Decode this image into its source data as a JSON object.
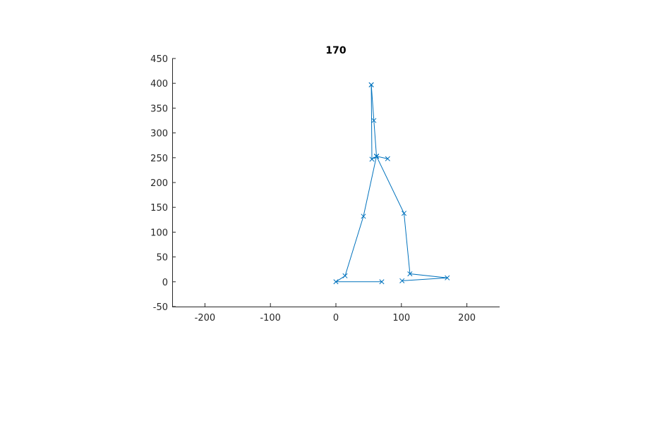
{
  "chart_data": {
    "type": "line",
    "title": "170",
    "xlabel": "",
    "ylabel": "",
    "xlim": [
      -250,
      250
    ],
    "ylim": [
      -50,
      450
    ],
    "xticks": [
      -200,
      -100,
      0,
      100,
      200
    ],
    "yticks": [
      -50,
      0,
      50,
      100,
      150,
      200,
      250,
      300,
      350,
      400,
      450
    ],
    "grid": false,
    "line_color": "#0072BD",
    "marker": "x",
    "series": [
      {
        "x": [
          54,
          58,
          62,
          79
        ],
        "y": [
          397,
          325,
          253,
          248
        ]
      },
      {
        "x": [
          54,
          55,
          62
        ],
        "y": [
          397,
          247,
          253
        ]
      },
      {
        "x": [
          62,
          42,
          14,
          0,
          70
        ],
        "y": [
          253,
          132,
          12,
          0,
          0
        ]
      },
      {
        "x": [
          62,
          104,
          113,
          170,
          101
        ],
        "y": [
          253,
          138,
          16,
          8,
          2
        ]
      }
    ]
  }
}
